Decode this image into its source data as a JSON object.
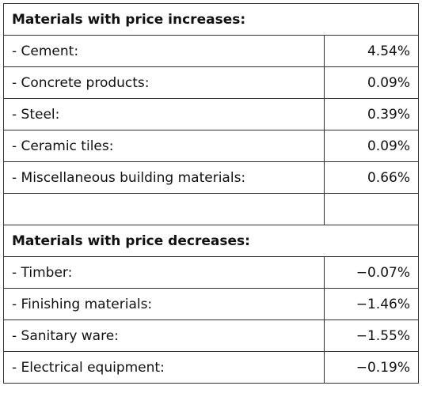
{
  "sections": [
    {
      "title": "Materials with price increases:",
      "rows": [
        [
          "- Cement:",
          "4.54%"
        ],
        [
          "- Concrete products:",
          "0.09%"
        ],
        [
          "- Steel:",
          "0.39%"
        ],
        [
          "- Ceramic tiles:",
          "0.09%"
        ],
        [
          "- Miscellaneous building materials:",
          "0.66%"
        ]
      ]
    },
    {
      "title": "Materials with price decreases:",
      "rows": [
        [
          "- Timber:",
          "−0.07%"
        ],
        [
          "- Finishing materials:",
          "−1.46%"
        ],
        [
          "- Sanitary ware:",
          "−1.55%"
        ],
        [
          "- Electrical equipment:",
          "−0.19%"
        ]
      ]
    }
  ]
}
